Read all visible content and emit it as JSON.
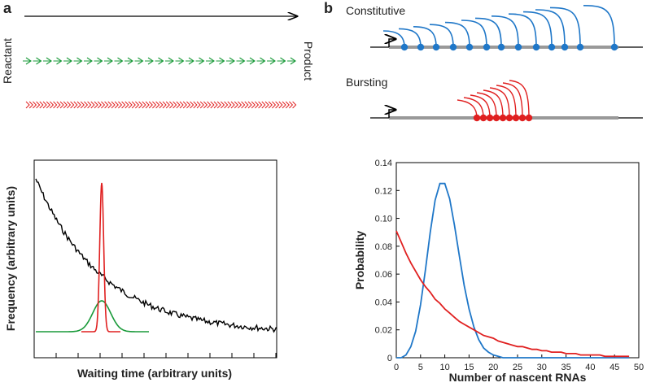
{
  "labels": {
    "panel_a": "a",
    "panel_b": "b",
    "reactant": "Reactant",
    "product": "Product",
    "constitutive": "Constitutive",
    "bursting": "Bursting"
  },
  "waiting_plot": {
    "ylabel": "Frequency (arbitrary units)",
    "xlabel": "Waiting time (arbitrary units)"
  },
  "chart_data": {
    "type": "line",
    "xlabel": "Number of nascent RNAs",
    "ylabel": "Probability",
    "x": [
      0,
      1,
      2,
      3,
      4,
      5,
      6,
      7,
      8,
      9,
      10,
      11,
      12,
      13,
      14,
      15,
      16,
      17,
      18,
      19,
      20,
      21,
      22,
      23,
      24,
      25,
      26,
      27,
      28,
      29,
      30,
      31,
      32,
      33,
      34,
      35,
      36,
      37,
      38,
      39,
      40,
      41,
      42,
      43,
      44,
      45,
      46,
      47,
      48
    ],
    "series": [
      {
        "color": "#1f77c8",
        "values": [
          0,
          0,
          0.002,
          0.008,
          0.019,
          0.038,
          0.063,
          0.09,
          0.113,
          0.125,
          0.125,
          0.114,
          0.095,
          0.073,
          0.052,
          0.035,
          0.022,
          0.013,
          0.007,
          0.004,
          0.002,
          0.001,
          0,
          0,
          0,
          0,
          0,
          0,
          0,
          0,
          0,
          0,
          0,
          0,
          0,
          0,
          0,
          0,
          0,
          0,
          0,
          0,
          0,
          0,
          0,
          0,
          0,
          0,
          0
        ]
      },
      {
        "color": "#e02020",
        "values": [
          0.091,
          0.083,
          0.075,
          0.068,
          0.062,
          0.056,
          0.051,
          0.047,
          0.042,
          0.039,
          0.035,
          0.032,
          0.029,
          0.026,
          0.024,
          0.022,
          0.02,
          0.018,
          0.016,
          0.015,
          0.014,
          0.012,
          0.011,
          0.01,
          0.009,
          0.008,
          0.008,
          0.007,
          0.006,
          0.006,
          0.005,
          0.005,
          0.004,
          0.004,
          0.004,
          0.003,
          0.003,
          0.003,
          0.002,
          0.002,
          0.002,
          0.002,
          0.002,
          0.001,
          0.001,
          0.001,
          0.001,
          0.001,
          0.001
        ]
      }
    ],
    "xlim": [
      0,
      50
    ],
    "xticks": [
      0,
      5,
      10,
      15,
      20,
      25,
      30,
      35,
      40,
      45,
      50
    ],
    "ylim": [
      0,
      0.14
    ],
    "yticks": [
      0,
      0.02,
      0.04,
      0.06,
      0.08,
      {
        "value": 0.1,
        "label": "0.10"
      },
      0.12,
      0.14
    ]
  }
}
